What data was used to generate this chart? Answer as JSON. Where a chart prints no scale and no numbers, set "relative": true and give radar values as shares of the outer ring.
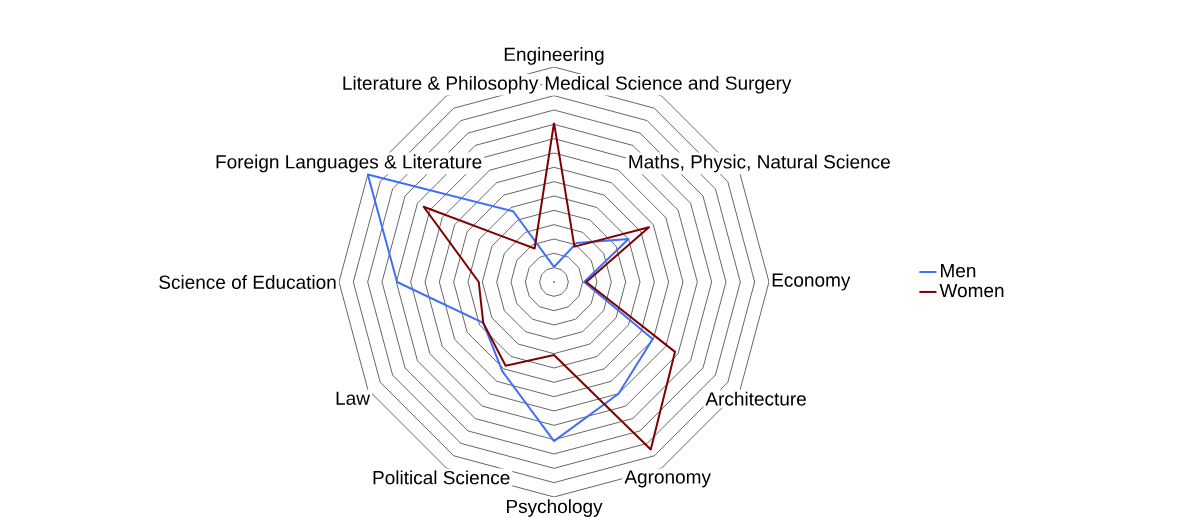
{
  "chart_data": {
    "type": "radar",
    "relative": true,
    "grid": true,
    "legend": "right",
    "categories": [
      "Engineering",
      "Medical Science and Surgery",
      "Maths, Physic, Natural Science",
      "Economy",
      "Architecture",
      "Agronomy",
      "Psychology",
      "Political Science",
      "Law",
      "Science of Education",
      "Foreign Languages & Literature",
      "Literature & Philosophy"
    ],
    "series": [
      {
        "name": "Men",
        "color": "#3f6ffa",
        "values": [
          0.07,
          0.21,
          0.4,
          0.14,
          0.53,
          0.6,
          0.74,
          0.48,
          0.38,
          0.73,
          1.0,
          0.38
        ]
      },
      {
        "name": "Women",
        "color": "#800000",
        "values": [
          0.74,
          0.19,
          0.51,
          0.15,
          0.65,
          0.9,
          0.34,
          0.45,
          0.38,
          0.35,
          0.7,
          0.18
        ]
      }
    ]
  }
}
